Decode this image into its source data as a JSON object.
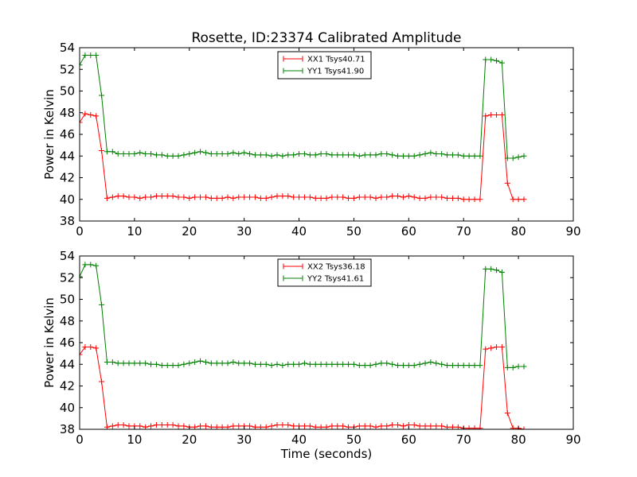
{
  "figure": {
    "title": "Rosette, ID:23374 Calibrated Amplitude",
    "xlabel": "Time (seconds)"
  },
  "chart_data": [
    {
      "type": "line",
      "title": "Rosette, ID:23374 Calibrated Amplitude",
      "xlabel": "",
      "ylabel": "Power in Kelvin",
      "xlim": [
        0,
        90
      ],
      "ylim": [
        38,
        54
      ],
      "xticks": [
        0,
        10,
        20,
        30,
        40,
        50,
        60,
        70,
        80,
        90
      ],
      "yticks": [
        38,
        40,
        42,
        44,
        46,
        48,
        50,
        52,
        54
      ],
      "grid": false,
      "legend_position": "top-center",
      "series": [
        {
          "name": "XX1 Tsys40.71",
          "color": "#ff0000",
          "marker": "plus",
          "x": [
            0,
            1,
            2,
            3,
            4,
            5,
            6,
            7,
            8,
            9,
            10,
            11,
            12,
            13,
            14,
            15,
            16,
            17,
            18,
            19,
            20,
            21,
            22,
            23,
            24,
            25,
            26,
            27,
            28,
            29,
            30,
            31,
            32,
            33,
            34,
            35,
            36,
            37,
            38,
            39,
            40,
            41,
            42,
            43,
            44,
            45,
            46,
            47,
            48,
            49,
            50,
            51,
            52,
            53,
            54,
            55,
            56,
            57,
            58,
            59,
            60,
            61,
            62,
            63,
            64,
            65,
            66,
            67,
            68,
            69,
            70,
            71,
            72,
            73,
            74,
            75,
            76,
            77,
            78,
            79,
            80,
            81
          ],
          "y": [
            47.1,
            47.9,
            47.8,
            47.7,
            44.5,
            40.1,
            40.2,
            40.3,
            40.3,
            40.2,
            40.2,
            40.1,
            40.2,
            40.2,
            40.3,
            40.3,
            40.3,
            40.3,
            40.2,
            40.2,
            40.1,
            40.2,
            40.2,
            40.2,
            40.1,
            40.1,
            40.1,
            40.2,
            40.1,
            40.2,
            40.2,
            40.2,
            40.2,
            40.1,
            40.1,
            40.2,
            40.3,
            40.3,
            40.3,
            40.2,
            40.2,
            40.2,
            40.2,
            40.1,
            40.1,
            40.1,
            40.2,
            40.2,
            40.2,
            40.1,
            40.1,
            40.2,
            40.2,
            40.2,
            40.1,
            40.2,
            40.2,
            40.3,
            40.3,
            40.2,
            40.3,
            40.2,
            40.1,
            40.1,
            40.2,
            40.2,
            40.2,
            40.1,
            40.1,
            40.1,
            40.0,
            40.0,
            40.0,
            40.0,
            47.7,
            47.8,
            47.8,
            47.8,
            41.5,
            40.0,
            40.0,
            40.0
          ]
        },
        {
          "name": "YY1 Tsys41.90",
          "color": "#008000",
          "marker": "plus",
          "x": [
            0,
            1,
            2,
            3,
            4,
            5,
            6,
            7,
            8,
            9,
            10,
            11,
            12,
            13,
            14,
            15,
            16,
            17,
            18,
            19,
            20,
            21,
            22,
            23,
            24,
            25,
            26,
            27,
            28,
            29,
            30,
            31,
            32,
            33,
            34,
            35,
            36,
            37,
            38,
            39,
            40,
            41,
            42,
            43,
            44,
            45,
            46,
            47,
            48,
            49,
            50,
            51,
            52,
            53,
            54,
            55,
            56,
            57,
            58,
            59,
            60,
            61,
            62,
            63,
            64,
            65,
            66,
            67,
            68,
            69,
            70,
            71,
            72,
            73,
            74,
            75,
            76,
            77,
            78,
            79,
            80,
            81
          ],
          "y": [
            52.4,
            53.3,
            53.3,
            53.3,
            49.6,
            44.4,
            44.4,
            44.2,
            44.2,
            44.2,
            44.2,
            44.3,
            44.2,
            44.2,
            44.1,
            44.1,
            44.0,
            44.0,
            44.0,
            44.1,
            44.2,
            44.3,
            44.4,
            44.3,
            44.2,
            44.2,
            44.2,
            44.2,
            44.3,
            44.2,
            44.3,
            44.2,
            44.1,
            44.1,
            44.1,
            44.0,
            44.1,
            44.0,
            44.1,
            44.1,
            44.2,
            44.2,
            44.1,
            44.1,
            44.2,
            44.2,
            44.1,
            44.1,
            44.1,
            44.1,
            44.1,
            44.0,
            44.1,
            44.1,
            44.1,
            44.2,
            44.2,
            44.1,
            44.0,
            44.0,
            44.0,
            44.0,
            44.1,
            44.2,
            44.3,
            44.2,
            44.2,
            44.1,
            44.1,
            44.1,
            44.0,
            44.0,
            44.0,
            44.0,
            52.9,
            52.9,
            52.8,
            52.6,
            43.8,
            43.8,
            43.9,
            44.0
          ]
        }
      ]
    },
    {
      "type": "line",
      "title": "",
      "xlabel": "Time (seconds)",
      "ylabel": "Power in Kelvin",
      "xlim": [
        0,
        90
      ],
      "ylim": [
        38,
        54
      ],
      "xticks": [
        0,
        10,
        20,
        30,
        40,
        50,
        60,
        70,
        80,
        90
      ],
      "yticks": [
        38,
        40,
        42,
        44,
        46,
        48,
        50,
        52,
        54
      ],
      "grid": false,
      "legend_position": "top-center",
      "series": [
        {
          "name": "XX2 Tsys36.18",
          "color": "#ff0000",
          "marker": "plus",
          "x": [
            0,
            1,
            2,
            3,
            4,
            5,
            6,
            7,
            8,
            9,
            10,
            11,
            12,
            13,
            14,
            15,
            16,
            17,
            18,
            19,
            20,
            21,
            22,
            23,
            24,
            25,
            26,
            27,
            28,
            29,
            30,
            31,
            32,
            33,
            34,
            35,
            36,
            37,
            38,
            39,
            40,
            41,
            42,
            43,
            44,
            45,
            46,
            47,
            48,
            49,
            50,
            51,
            52,
            53,
            54,
            55,
            56,
            57,
            58,
            59,
            60,
            61,
            62,
            63,
            64,
            65,
            66,
            67,
            68,
            69,
            70,
            71,
            72,
            73,
            74,
            75,
            76,
            77,
            78,
            79,
            80,
            81
          ],
          "y": [
            44.9,
            45.6,
            45.6,
            45.5,
            42.4,
            38.2,
            38.3,
            38.4,
            38.4,
            38.3,
            38.3,
            38.3,
            38.2,
            38.3,
            38.4,
            38.4,
            38.4,
            38.4,
            38.3,
            38.3,
            38.2,
            38.2,
            38.3,
            38.3,
            38.2,
            38.2,
            38.2,
            38.2,
            38.3,
            38.3,
            38.3,
            38.3,
            38.2,
            38.2,
            38.2,
            38.3,
            38.4,
            38.4,
            38.4,
            38.3,
            38.3,
            38.3,
            38.3,
            38.2,
            38.2,
            38.2,
            38.3,
            38.3,
            38.3,
            38.2,
            38.2,
            38.3,
            38.3,
            38.3,
            38.2,
            38.3,
            38.3,
            38.4,
            38.4,
            38.3,
            38.4,
            38.4,
            38.3,
            38.3,
            38.3,
            38.3,
            38.3,
            38.2,
            38.2,
            38.2,
            38.1,
            38.1,
            38.1,
            38.1,
            45.4,
            45.5,
            45.6,
            45.6,
            39.5,
            38.1,
            38.1,
            38.0
          ]
        },
        {
          "name": "YY2 Tsys41.61",
          "color": "#008000",
          "marker": "plus",
          "x": [
            0,
            1,
            2,
            3,
            4,
            5,
            6,
            7,
            8,
            9,
            10,
            11,
            12,
            13,
            14,
            15,
            16,
            17,
            18,
            19,
            20,
            21,
            22,
            23,
            24,
            25,
            26,
            27,
            28,
            29,
            30,
            31,
            32,
            33,
            34,
            35,
            36,
            37,
            38,
            39,
            40,
            41,
            42,
            43,
            44,
            45,
            46,
            47,
            48,
            49,
            50,
            51,
            52,
            53,
            54,
            55,
            56,
            57,
            58,
            59,
            60,
            61,
            62,
            63,
            64,
            65,
            66,
            67,
            68,
            69,
            70,
            71,
            72,
            73,
            74,
            75,
            76,
            77,
            78,
            79,
            80,
            81
          ],
          "y": [
            52.1,
            53.2,
            53.2,
            53.1,
            49.5,
            44.2,
            44.2,
            44.1,
            44.1,
            44.1,
            44.1,
            44.1,
            44.1,
            44.0,
            44.0,
            43.9,
            43.9,
            43.9,
            43.9,
            44.0,
            44.1,
            44.2,
            44.3,
            44.2,
            44.1,
            44.1,
            44.1,
            44.1,
            44.2,
            44.1,
            44.1,
            44.1,
            44.0,
            44.0,
            44.0,
            43.9,
            44.0,
            43.9,
            44.0,
            44.0,
            44.0,
            44.1,
            44.0,
            44.0,
            44.0,
            44.0,
            44.0,
            44.0,
            44.0,
            44.0,
            44.0,
            43.9,
            43.9,
            43.9,
            44.0,
            44.1,
            44.1,
            44.0,
            43.9,
            43.9,
            43.9,
            43.9,
            44.0,
            44.1,
            44.2,
            44.1,
            44.0,
            43.9,
            43.9,
            43.9,
            43.9,
            43.9,
            43.9,
            43.9,
            52.8,
            52.8,
            52.7,
            52.5,
            43.7,
            43.7,
            43.8,
            43.8
          ]
        }
      ]
    }
  ]
}
